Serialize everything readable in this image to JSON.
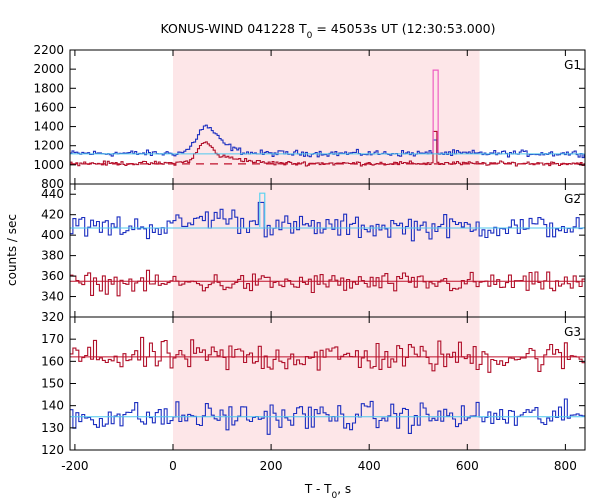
{
  "chart_data": {
    "type": "line",
    "title": {
      "prefix": "KONUS-WIND 041228 T",
      "sub": "0",
      "suffix": " = 45053s UT (12:30:53.000)"
    },
    "xlabel": {
      "prefix": "T - T",
      "sub": "0",
      "suffix": ", s"
    },
    "ylabel": "counts / sec",
    "xlim": [
      -210,
      840
    ],
    "x_ticks": [
      -200,
      0,
      200,
      400,
      600,
      800
    ],
    "x_tick_labels": [
      "-200",
      "0",
      "200",
      "400",
      "600",
      "800"
    ],
    "shaded_interval": [
      0,
      625
    ],
    "colors": {
      "shade": "#fde6e8",
      "blue": "#1c2fc0",
      "red": "#b0102a",
      "cyan": "#5ad2f0",
      "pink": "#ef5fc2",
      "bg_line_blue": "#4fc8ee",
      "bg_line_red": "#c0102a"
    },
    "panels": [
      {
        "label": "G1",
        "ylim": [
          800,
          2200
        ],
        "y_ticks": [
          800,
          1000,
          1200,
          1400,
          1600,
          1800,
          2000,
          2200
        ],
        "y_tick_labels": [
          "800",
          "1000",
          "1200",
          "1400",
          "1600",
          "1800",
          "2000",
          "2200"
        ],
        "series": [
          {
            "color": "blue",
            "style": "step",
            "step": 4,
            "base": 1120,
            "noise": 22,
            "bumps": [
              [
                65,
                1330,
                25
              ],
              [
                90,
                1220,
                40
              ]
            ],
            "spikes": [
              [
                535,
                1260
              ]
            ]
          },
          {
            "color": "red",
            "style": "step",
            "step": 4,
            "base": 1015,
            "noise": 15,
            "bumps": [
              [
                65,
                1190,
                20
              ],
              [
                100,
                1080,
                60
              ]
            ],
            "spikes": [
              [
                535,
                1350
              ]
            ]
          },
          {
            "color": "pink",
            "style": "spike",
            "x": 535.5,
            "y": 1990
          },
          {
            "color": "bg_line_blue",
            "style": "flat",
            "value": 1115
          },
          {
            "color": "bg_line_red",
            "style": "dashed",
            "value": 1010
          }
        ]
      },
      {
        "label": "G2",
        "ylim": [
          320,
          450
        ],
        "y_ticks": [
          320,
          340,
          360,
          380,
          400,
          420,
          440
        ],
        "y_tick_labels": [
          "320",
          "340",
          "360",
          "380",
          "400",
          "420",
          "440"
        ],
        "series": [
          {
            "color": "blue",
            "style": "step",
            "step": 6,
            "base": 408,
            "noise": 8,
            "bumps": [
              [
                90,
                418,
                60
              ]
            ],
            "spikes": [
              [
                182,
                432
              ]
            ]
          },
          {
            "color": "red",
            "style": "step",
            "step": 6,
            "base": 353,
            "noise": 7,
            "bumps": [],
            "spikes": []
          },
          {
            "color": "cyan",
            "style": "spike",
            "x": 182,
            "y": 441
          },
          {
            "color": "bg_line_blue",
            "style": "flat",
            "value": 407
          },
          {
            "color": "bg_line_red",
            "style": "flat",
            "value": 355
          }
        ]
      },
      {
        "label": "G3",
        "ylim": [
          120,
          180
        ],
        "y_ticks": [
          120,
          130,
          140,
          150,
          160,
          170
        ],
        "y_tick_labels": [
          "120",
          "130",
          "140",
          "150",
          "160",
          "170"
        ],
        "series": [
          {
            "color": "red",
            "style": "step",
            "step": 6,
            "base": 162,
            "noise": 5,
            "bumps": [],
            "spikes": []
          },
          {
            "color": "blue",
            "style": "step",
            "step": 6,
            "base": 135,
            "noise": 4.5,
            "bumps": [],
            "spikes": []
          },
          {
            "color": "bg_line_red",
            "style": "flat",
            "value": 162
          },
          {
            "color": "bg_line_blue",
            "style": "flat",
            "value": 135
          }
        ]
      }
    ]
  }
}
